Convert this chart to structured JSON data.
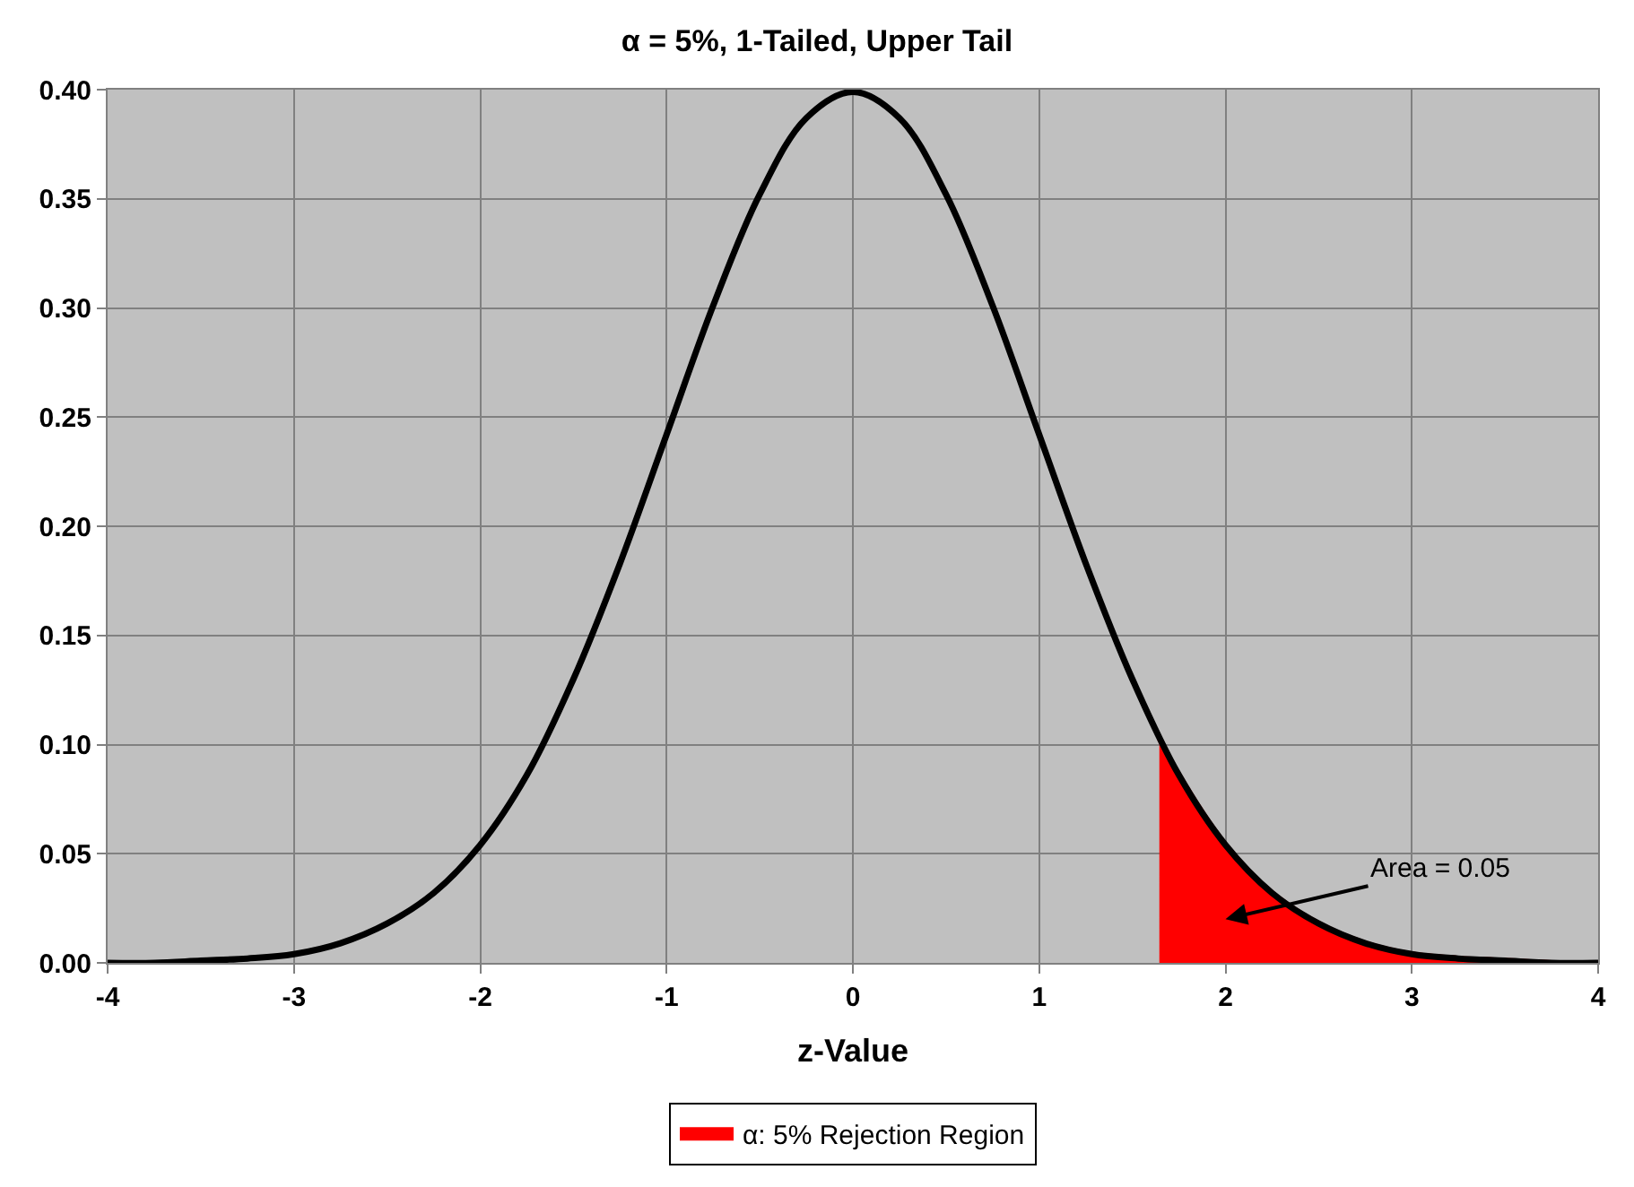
{
  "chart_data": {
    "type": "line",
    "title": "α = 5%, 1-Tailed, Upper Tail",
    "xlabel": "z-Value",
    "series": [
      {
        "type": "area",
        "name": "α: 5% Rejection Region",
        "color": "#ff0000",
        "x": [
          1.645,
          1.75,
          2,
          2.25,
          2.5,
          2.75,
          3,
          3.25,
          3.5,
          3.75,
          4
        ],
        "values": [
          0.103,
          0.086,
          0.054,
          0.032,
          0.018,
          0.009,
          0.004,
          0.002,
          0.001,
          0.0,
          0.0
        ]
      },
      {
        "color": "#000000",
        "x": [
          -4,
          -3.75,
          -3.5,
          -3.25,
          -3,
          -2.75,
          -2.5,
          -2.25,
          -2,
          -1.75,
          -1.5,
          -1.25,
          -1,
          -0.75,
          -0.5,
          -0.25,
          0,
          0.25,
          0.5,
          0.75,
          1,
          1.25,
          1.5,
          1.75,
          2,
          2.25,
          2.5,
          2.75,
          3,
          3.25,
          3.5,
          3.75,
          4
        ],
        "values": [
          0.0,
          0.0,
          0.001,
          0.002,
          0.004,
          0.009,
          0.018,
          0.032,
          0.054,
          0.086,
          0.13,
          0.183,
          0.242,
          0.301,
          0.352,
          0.387,
          0.399,
          0.387,
          0.352,
          0.301,
          0.242,
          0.183,
          0.13,
          0.086,
          0.054,
          0.032,
          0.018,
          0.009,
          0.004,
          0.002,
          0.001,
          0.0,
          0.0
        ]
      }
    ],
    "xlim": [
      -4,
      4
    ],
    "xticks": [
      -4,
      -3,
      -2,
      -1,
      0,
      1,
      2,
      3,
      4
    ],
    "ylim": [
      0,
      0.4
    ],
    "yticks": [
      {
        "value": 0,
        "label": "0.00"
      },
      {
        "value": 0.05,
        "label": "0.05"
      },
      {
        "value": 0.1,
        "label": "0.10"
      },
      {
        "value": 0.15,
        "label": "0.15"
      },
      {
        "value": 0.2,
        "label": "0.20"
      },
      {
        "value": 0.25,
        "label": "0.25"
      },
      {
        "value": 0.3,
        "label": "0.30"
      },
      {
        "value": 0.35,
        "label": "0.35"
      },
      {
        "value": 0.4,
        "label": "0.40"
      }
    ],
    "annotations": [
      "Area = 0.05"
    ],
    "grid": true,
    "legend": "bottom",
    "marker": "none",
    "line_style": "solid"
  }
}
